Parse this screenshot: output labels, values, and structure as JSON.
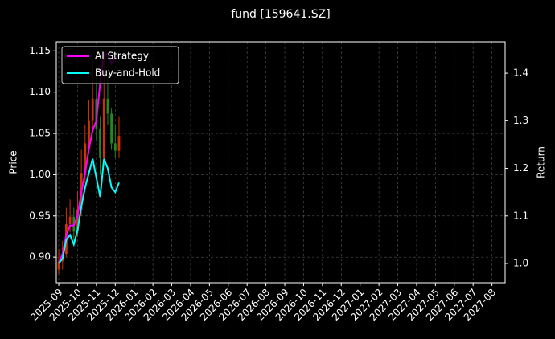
{
  "chart_data": {
    "type": "candlestick",
    "title": "fund [159641.SZ]",
    "ylabel": "Price",
    "y2label": "Return",
    "x": [
      0,
      0.2,
      0.4,
      0.6,
      0.8,
      1.0,
      1.2,
      1.4,
      1.6,
      1.8,
      2.0,
      2.2,
      2.4,
      2.6,
      2.8,
      3.0,
      3.2
    ],
    "open": [
      0.885,
      0.895,
      0.904,
      0.94,
      0.949,
      0.931,
      0.958,
      1.002,
      1.038,
      1.065,
      1.092,
      1.056,
      1.02,
      1.092,
      1.074,
      1.038,
      1.029
    ],
    "high": [
      0.91,
      0.92,
      0.96,
      0.97,
      0.96,
      0.98,
      1.03,
      1.06,
      1.09,
      1.14,
      1.12,
      1.07,
      1.15,
      1.12,
      1.08,
      1.06,
      1.07
    ],
    "low": [
      0.88,
      0.885,
      0.9,
      0.93,
      0.92,
      0.925,
      0.95,
      0.99,
      1.03,
      1.05,
      1.04,
      1.0,
      1.01,
      1.06,
      1.03,
      1.02,
      1.02
    ],
    "close": [
      0.895,
      0.904,
      0.94,
      0.949,
      0.931,
      0.958,
      1.002,
      1.038,
      1.065,
      1.092,
      1.056,
      1.02,
      1.092,
      1.074,
      1.038,
      1.029,
      1.047
    ],
    "up_color": "#cc3300",
    "down_color": "#228822",
    "series": [
      {
        "name": "AI Strategy",
        "color": "#ff00ff",
        "axis": "y2",
        "values": [
          1.0,
          1.02,
          1.06,
          1.08,
          1.08,
          1.1,
          1.15,
          1.19,
          1.24,
          1.28,
          1.3,
          1.38,
          1.44,
          1.44,
          1.42,
          1.43,
          1.44
        ]
      },
      {
        "name": "Buy-and-Hold",
        "color": "#00ffff",
        "axis": "y2",
        "values": [
          1.0,
          1.01,
          1.05,
          1.06,
          1.04,
          1.07,
          1.12,
          1.16,
          1.19,
          1.22,
          1.18,
          1.14,
          1.22,
          1.2,
          1.16,
          1.15,
          1.17
        ]
      }
    ],
    "xlim": [
      -0.13,
      23.7
    ],
    "xticks": [
      {
        "value": 0,
        "label": "2025-09"
      },
      {
        "value": 1,
        "label": "2025-10"
      },
      {
        "value": 2,
        "label": "2025-11"
      },
      {
        "value": 3,
        "label": "2025-12"
      },
      {
        "value": 4,
        "label": "2026-01"
      },
      {
        "value": 5,
        "label": "2026-02"
      },
      {
        "value": 6,
        "label": "2026-03"
      },
      {
        "value": 7,
        "label": "2026-04"
      },
      {
        "value": 8,
        "label": "2026-05"
      },
      {
        "value": 9,
        "label": "2026-06"
      },
      {
        "value": 10,
        "label": "2026-07"
      },
      {
        "value": 11,
        "label": "2026-08"
      },
      {
        "value": 12,
        "label": "2026-09"
      },
      {
        "value": 13,
        "label": "2026-10"
      },
      {
        "value": 14,
        "label": "2026-11"
      },
      {
        "value": 15,
        "label": "2026-12"
      },
      {
        "value": 16,
        "label": "2027-01"
      },
      {
        "value": 17,
        "label": "2027-02"
      },
      {
        "value": 18,
        "label": "2027-03"
      },
      {
        "value": 19,
        "label": "2027-04"
      },
      {
        "value": 20,
        "label": "2027-05"
      },
      {
        "value": 21,
        "label": "2027-06"
      },
      {
        "value": 22,
        "label": "2027-07"
      },
      {
        "value": 23,
        "label": "2027-08"
      }
    ],
    "ylim": [
      0.869,
      1.161
    ],
    "yticks": [
      {
        "value": 0.9,
        "label": "0.90"
      },
      0.95,
      {
        "value": 1.0,
        "label": "1.00"
      },
      1.05,
      {
        "value": 1.1,
        "label": "1.10"
      },
      1.15
    ],
    "y2lim": [
      0.9595,
      1.466
    ],
    "y2ticks": [
      {
        "value": 1.0,
        "label": "1.0"
      },
      1.1,
      1.2,
      1.3,
      1.4
    ],
    "grid": true,
    "legend": "upper left"
  }
}
